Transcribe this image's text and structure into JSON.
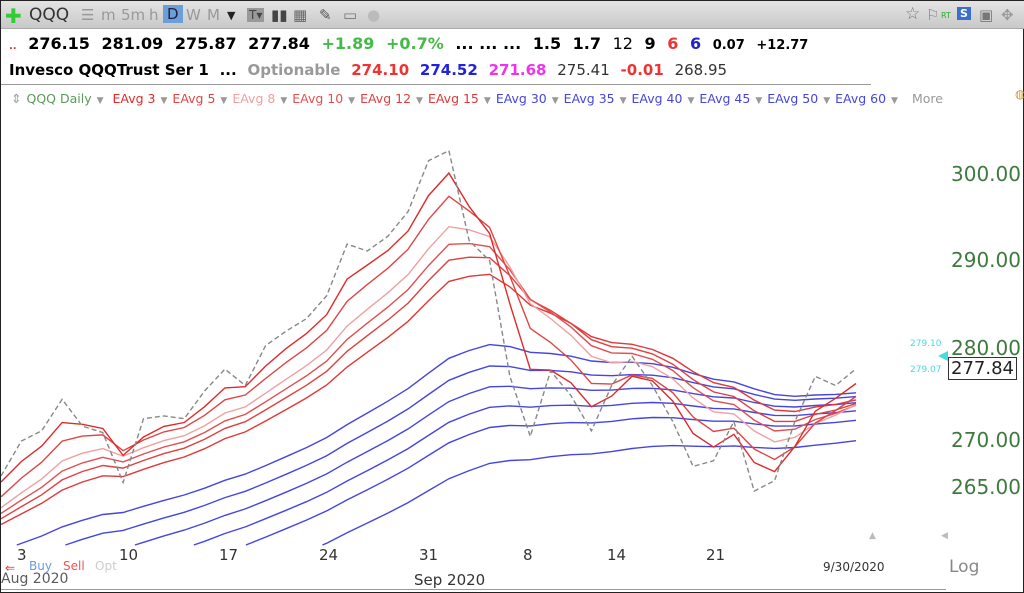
{
  "toolbar": {
    "symbol": "QQQ",
    "intervals": [
      "m",
      "5m",
      "h",
      "D",
      "W",
      "M"
    ],
    "active_interval": "D",
    "rt": "RT",
    "s": "S"
  },
  "quote": {
    "open": "276.15",
    "high": "281.09",
    "low": "275.87",
    "close": "277.84",
    "change": "+1.89",
    "change_pct": "+0.7%",
    "dots": "... ... ...",
    "v1": "1.5",
    "v2": "1.7",
    "v3": "12",
    "v4": "9",
    "v5": "6",
    "v6": "6",
    "v7": "0.07",
    "v8": "+12.77"
  },
  "info": {
    "name": "Invesco QQQTrust Ser 1",
    "dots": "...",
    "optionable": "Optionable",
    "p1": "274.10",
    "p2": "274.52",
    "p3": "271.68",
    "p4": "275.41",
    "p5": "-0.01",
    "p6": "268.95"
  },
  "legend": {
    "main": "QQQ Daily",
    "more": "More"
  },
  "bottom": {
    "buy": "Buy",
    "sell": "Sell",
    "opt": "Opt",
    "date": "9/30/2020",
    "scale": "Log",
    "month": "Sep 2020",
    "left_date": "Aug 2020"
  },
  "price_box": {
    "value": "277.84",
    "cyan_high": "279.10",
    "cyan_low": "279.07"
  },
  "chart_data": {
    "type": "line",
    "title": "QQQ Daily",
    "yscale": "log",
    "ylim": [
      257,
      306
    ],
    "yticks": [
      "300.00",
      "290.00",
      "280.00",
      "270.00",
      "265.00"
    ],
    "xticks": [
      "3",
      "10",
      "17",
      "24",
      "31",
      "8",
      "14",
      "21"
    ],
    "close": [
      266.3,
      270.0,
      271.1,
      274.5,
      271.6,
      270.9,
      265.6,
      272.4,
      272.7,
      272.4,
      275.4,
      277.8,
      276.0,
      280.4,
      282.0,
      283.4,
      286.0,
      291.9,
      291.1,
      292.8,
      295.7,
      301.7,
      302.9,
      292.3,
      290.0,
      277.0,
      270.5,
      277.6,
      274.9,
      271.1,
      276.0,
      279.2,
      276.0,
      272.1,
      267.3,
      267.9,
      272.1,
      264.7,
      265.8,
      272.1,
      277.0,
      276.0,
      277.84
    ],
    "series": [
      {
        "name": "EAvg 3",
        "period": 3,
        "seed": 265,
        "color": "#e02a2a"
      },
      {
        "name": "EAvg 5",
        "period": 5,
        "seed": 263,
        "color": "#e04545"
      },
      {
        "name": "EAvg 8",
        "period": 8,
        "seed": 262,
        "color": "#f0a0a0"
      },
      {
        "name": "EAvg 10",
        "period": 10,
        "seed": 261.5,
        "color": "#e05050"
      },
      {
        "name": "EAvg 12",
        "period": 12,
        "seed": 261,
        "color": "#e04040"
      },
      {
        "name": "EAvg 15",
        "period": 15,
        "seed": 260.5,
        "color": "#e03838"
      },
      {
        "name": "EAvg 30",
        "period": 30,
        "seed": 258,
        "color": "#4545e0"
      },
      {
        "name": "EAvg 35",
        "period": 35,
        "seed": 256,
        "color": "#4545e0"
      },
      {
        "name": "EAvg 40",
        "period": 40,
        "seed": 254,
        "color": "#4545e0"
      },
      {
        "name": "EAvg 45",
        "period": 45,
        "seed": 252,
        "color": "#4545e0"
      },
      {
        "name": "EAvg 50",
        "period": 50,
        "seed": 250,
        "color": "#4545e0"
      },
      {
        "name": "EAvg 60",
        "period": 60,
        "seed": 247,
        "color": "#4545e0"
      }
    ]
  }
}
